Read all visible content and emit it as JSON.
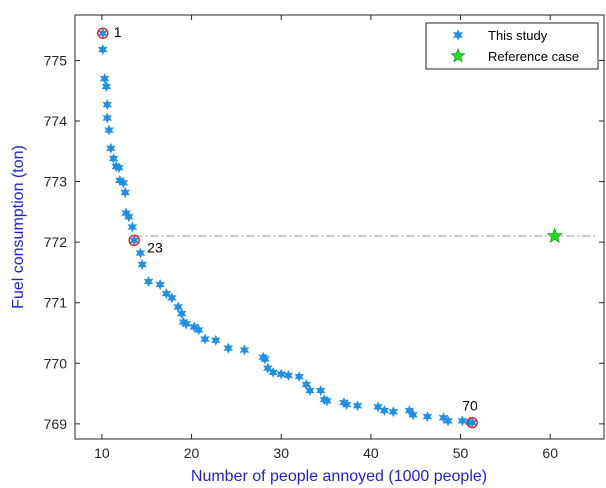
{
  "chart_data": {
    "type": "scatter",
    "title": "",
    "xlabel": "Number of people annoyed (1000 people)",
    "ylabel": "Fuel consumption (ton)",
    "xlim": [
      7,
      66
    ],
    "ylim": [
      768.75,
      775.75
    ],
    "xticks": [
      10,
      20,
      30,
      40,
      50,
      60
    ],
    "yticks": [
      769,
      770,
      771,
      772,
      773,
      774,
      775
    ],
    "grid": false,
    "legend_position": "top-right",
    "colors": {
      "axis_label": "#1f1fe0",
      "this_study": "#1e90e6",
      "reference": "#22dd22",
      "highlight": "#e02020",
      "hline": "#a0a0a0"
    },
    "series": [
      {
        "name": "This study",
        "marker": "star6",
        "points": [
          [
            10.1,
            775.45
          ],
          [
            10.1,
            775.18
          ],
          [
            10.3,
            774.7
          ],
          [
            10.5,
            774.57
          ],
          [
            10.6,
            774.27
          ],
          [
            10.6,
            774.05
          ],
          [
            10.8,
            773.85
          ],
          [
            11.0,
            773.55
          ],
          [
            11.3,
            773.38
          ],
          [
            11.6,
            773.25
          ],
          [
            11.9,
            773.23
          ],
          [
            12.0,
            773.02
          ],
          [
            12.4,
            772.98
          ],
          [
            12.6,
            772.82
          ],
          [
            12.7,
            772.48
          ],
          [
            13.0,
            772.42
          ],
          [
            13.4,
            772.25
          ],
          [
            13.6,
            772.03
          ],
          [
            14.3,
            771.82
          ],
          [
            14.5,
            771.63
          ],
          [
            15.2,
            771.35
          ],
          [
            16.5,
            771.3
          ],
          [
            17.2,
            771.15
          ],
          [
            17.8,
            771.08
          ],
          [
            18.5,
            770.93
          ],
          [
            18.9,
            770.82
          ],
          [
            19.1,
            770.68
          ],
          [
            19.4,
            770.65
          ],
          [
            20.3,
            770.6
          ],
          [
            20.8,
            770.55
          ],
          [
            21.5,
            770.4
          ],
          [
            22.7,
            770.38
          ],
          [
            24.1,
            770.25
          ],
          [
            25.9,
            770.22
          ],
          [
            28.0,
            770.1
          ],
          [
            28.2,
            770.07
          ],
          [
            28.5,
            769.92
          ],
          [
            29.1,
            769.85
          ],
          [
            30.0,
            769.82
          ],
          [
            30.8,
            769.8
          ],
          [
            32.0,
            769.78
          ],
          [
            32.8,
            769.65
          ],
          [
            33.2,
            769.55
          ],
          [
            34.4,
            769.55
          ],
          [
            34.8,
            769.4
          ],
          [
            35.1,
            769.38
          ],
          [
            37.0,
            769.35
          ],
          [
            37.3,
            769.32
          ],
          [
            38.5,
            769.3
          ],
          [
            40.8,
            769.28
          ],
          [
            41.5,
            769.22
          ],
          [
            42.5,
            769.2
          ],
          [
            44.3,
            769.22
          ],
          [
            44.7,
            769.15
          ],
          [
            46.3,
            769.12
          ],
          [
            48.1,
            769.1
          ],
          [
            48.6,
            769.05
          ],
          [
            50.2,
            769.05
          ],
          [
            51.0,
            769.03
          ],
          [
            51.3,
            769.02
          ]
        ]
      },
      {
        "name": "Reference case",
        "marker": "star5",
        "points": [
          [
            60.5,
            772.1
          ]
        ]
      }
    ],
    "highlighted_points": [
      {
        "label": "1",
        "x": 10.1,
        "y": 775.45
      },
      {
        "label": "23",
        "x": 13.6,
        "y": 772.03
      },
      {
        "label": "70",
        "x": 51.3,
        "y": 769.02
      }
    ],
    "reference_line": {
      "y": 772.1,
      "style": "dash-dot"
    }
  }
}
